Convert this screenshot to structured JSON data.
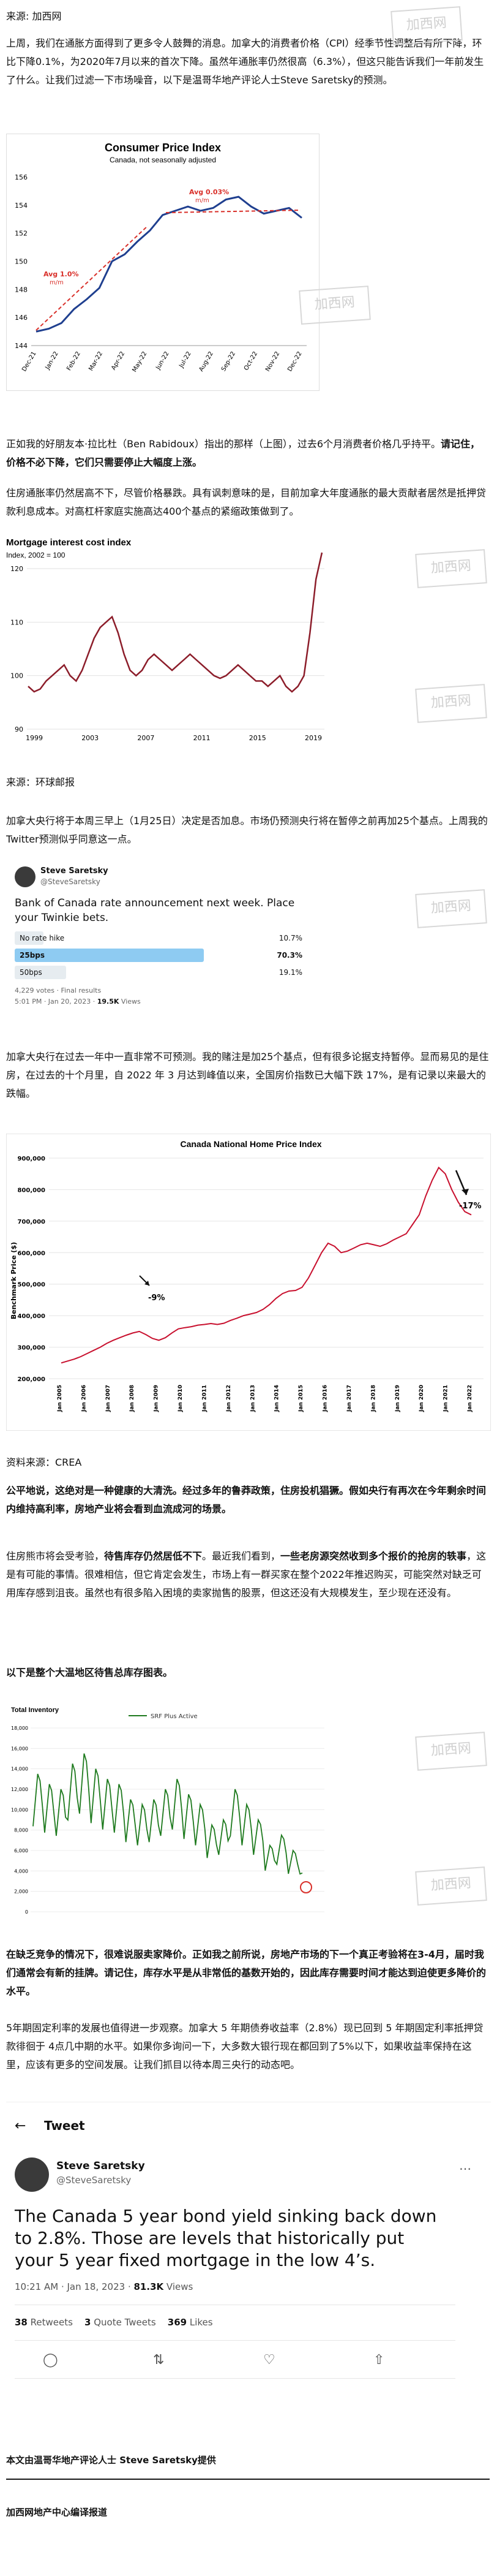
{
  "source1": "来源: 加西网",
  "para1": "上周，我们在通胀方面得到了更多令人鼓舞的消息。加拿大的消费者价格（CPI）经季节性调整后有所下降，环比下降0.1%，为2020年7月以来的首次下降。虽然年通胀率仍然很高（6.3%），但这只能告诉我们一年前发生了什么。让我们过滤一下市场噪音，以下是温哥华地产评论人士Steve Saretsky的预测。",
  "cpi": {
    "title": "Consumer Price Index",
    "subtitle": "Canada, not seasonally adjusted",
    "y_ticks": [
      "156",
      "154",
      "152",
      "150",
      "148",
      "146",
      "144"
    ],
    "x_ticks": [
      "Dec-21",
      "Jan-22",
      "Feb-22",
      "Mar-22",
      "Apr-22",
      "May-22",
      "Jun-22",
      "Jul-22",
      "Aug-22",
      "Sep-22",
      "Oct-22",
      "Nov-22",
      "Dec-22"
    ],
    "ann_left_1": "Avg 1.0%",
    "ann_left_2": "m/m",
    "ann_right_1": "Avg 0.03%",
    "ann_right_2": "m/m",
    "line_color": "#1f3f8f",
    "trend_color": "#d9302a"
  },
  "para2_a": "正如我的好朋友本·拉比杜（Ben Rabidoux）指出的那样（上图），过去6个月消费者价格几乎持平。",
  "para2_b": "请记住，价格不必下降，它们只需要停止大幅度上涨。",
  "para3": "住房通胀率仍然居高不下，尽管价格暴跌。具有讽刺意味的是，目前加拿大年度通胀的最大贡献者居然是抵押贷款利息成本。对高杠杆家庭实施高达400个基点的紧缩政策做到了。",
  "mortgage": {
    "title": "Mortgage interest cost index",
    "subtitle": "Index, 2002 = 100",
    "y_ticks": [
      "120",
      "110",
      "100",
      "90"
    ],
    "x_ticks": [
      "1999",
      "2003",
      "2007",
      "2011",
      "2015",
      "2019"
    ],
    "line_color": "#8c1d2a"
  },
  "source2": "来源：环球邮报",
  "para4": "加拿大央行将于本周三早上（1月25日）决定是否加息。市场仍预测央行将在暂停之前再加25个基点。上周我的Twitter预测似乎同意这一点。",
  "poll": {
    "name": "Steve Saretsky",
    "handle": "@SteveSaretsky",
    "text": "Bank of Canada rate announcement next week. Place your Twinkie bets.",
    "options": [
      {
        "label": "No rate hike",
        "pct": "10.7%",
        "value": 10.7
      },
      {
        "label": "25bps",
        "pct": "70.3%",
        "value": 70.3
      },
      {
        "label": "50bps",
        "pct": "19.1%",
        "value": 19.1
      }
    ],
    "meta_a": "4,229 votes · Final results",
    "meta_b": "5:01 PM · Jan 20, 2023 · ",
    "views": "19.5K",
    "views_label": " Views"
  },
  "para5_a": "加拿大央行在过去一年中一直非常不可预测。我的赌注是加25个基点，但有很多论据支持暂停。显而易见的是住房，在过去的十个月里，自 2022 年 3 月达到峰值以来，全国房价指数已大幅下跌 17%，是有记录以来最大的跌幅。",
  "hpi": {
    "title": "Canada National Home Price Index",
    "ylabel": "Benchmark Price ($)",
    "y_ticks": [
      "900,000",
      "800,000",
      "700,000",
      "600,000",
      "500,000",
      "400,000",
      "300,000",
      "200,000"
    ],
    "x_ticks": [
      "Jan 2005",
      "Jan 2006",
      "Jan 2007",
      "Jan 2008",
      "Jan 2009",
      "Jan 2010",
      "Jan 2011",
      "Jan 2012",
      "Jan 2013",
      "Jan 2014",
      "Jan 2015",
      "Jan 2016",
      "Jan 2017",
      "Jan 2018",
      "Jan 2019",
      "Jan 2020",
      "Jan 2021",
      "Jan 2022"
    ],
    "ann_dip": "-9%",
    "ann_drop": "-17%",
    "line_color": "#c8102e"
  },
  "source3": "资料来源：CREA",
  "para6": "公平地说，这绝对是一种健康的大清洗。经过多年的鲁莽政策，住房投机猖獗。假如央行有再次在今年剩余时间内维持高利率，房地产业将会看到血流成河的场景。",
  "para7_a": "住房熊市将会受考验，",
  "para7_b": "待售库存仍然居低不下",
  "para7_c": "。最近我们看到，",
  "para7_d": "一些老房源突然收到多个报价的抢房的轶事",
  "para7_e": "，这是有可能的事情。很难相信，但它肯定会发生，市场上有一群买家在整个2022年推迟购买，可能突然对缺乏可用库存感到沮丧。虽然也有很多陷入困境的卖家抛售的股票，但这还没有大规模发生，至少现在还没有。",
  "para8": "以下是整个大温地区待售总库存图表。",
  "inventory": {
    "title": "Total Inventory",
    "y_ticks": [
      "18,000",
      "16,000",
      "14,000",
      "12,000",
      "10,000",
      "8,000",
      "6,000",
      "4,000",
      "2,000",
      "0"
    ],
    "legend": "SRF Plus Active",
    "line_color": "#1e7a1e"
  },
  "para9": "在缺乏竞争的情况下，很难说服卖家降价。正如我之前所说，房地产市场的下一个真正考验将在3-4月，届时我们通常会有新的挂牌。请记住，库存水平是从非常低的基数开始的，因此库存需要时间才能达到迫使更多降价的水平。",
  "para10": "5年期固定利率的发展也值得进一步观察。加拿大 5 年期债券收益率（2.8%）现已回到 5 年期固定利率抵押贷款徘徊于 4点几中期的水平。如果你多询问一下，大多数大银行现在都回到了5%以下，如果收益率保持在这里，应该有更多的空间发展。让我们抓目以待本周三央行的动态吧。",
  "tweet": {
    "header": "Tweet",
    "name": "Steve Saretsky",
    "handle": "@SteveSaretsky",
    "text": "The Canada 5 year bond yield sinking back down to 2.8%. Those are levels that historically put your 5 year fixed mortgage in the low 4’s.",
    "meta": "10:21 AM · Jan 18, 2023 · ",
    "views": "81.3K",
    "views_label": " Views",
    "retweets": "38",
    "retweets_label": " Retweets",
    "quotes": "3",
    "quotes_label": " Quote Tweets",
    "likes": "369",
    "likes_label": " Likes"
  },
  "credit": "本文由温哥华地产评论人士 Steve Saretsky提供",
  "footer": "加西网地产中心编译报道",
  "watermark": "加西网"
}
